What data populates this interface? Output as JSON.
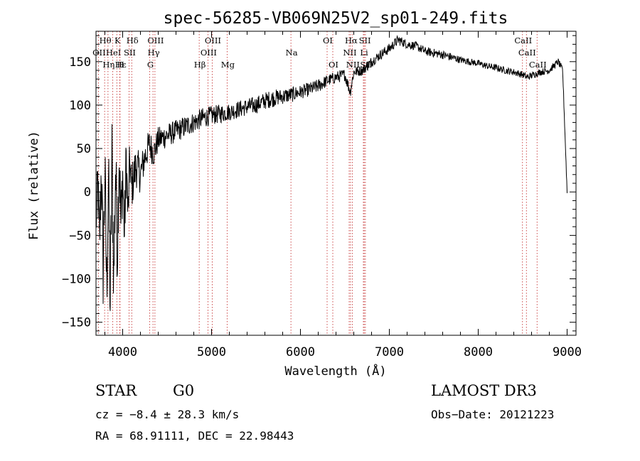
{
  "chart_data": {
    "type": "line",
    "title": "spec-56285-VB069N25V2_sp01-249.fits",
    "xlabel": "Wavelength (Å)",
    "ylabel": "Flux (relative)",
    "xlim": [
      3700,
      9100
    ],
    "ylim": [
      -165,
      185
    ],
    "x_ticks": [
      4000,
      5000,
      6000,
      7000,
      8000,
      9000
    ],
    "x_tick_labels": [
      "4000",
      "5000",
      "6000",
      "7000",
      "8000",
      "9000"
    ],
    "y_ticks": [
      -150,
      -100,
      -50,
      0,
      50,
      100,
      150
    ],
    "y_tick_labels": [
      "−150",
      "−100",
      "−50",
      "0",
      "50",
      "100",
      "150"
    ],
    "series": [
      {
        "name": "flux",
        "x": [
          3700,
          3720,
          3740,
          3760,
          3780,
          3800,
          3820,
          3840,
          3860,
          3880,
          3900,
          3920,
          3940,
          3960,
          3980,
          4000,
          4020,
          4040,
          4060,
          4080,
          4100,
          4150,
          4200,
          4250,
          4300,
          4350,
          4400,
          4500,
          4600,
          4700,
          4800,
          4900,
          5000,
          5100,
          5200,
          5300,
          5400,
          5500,
          5600,
          5700,
          5800,
          5900,
          6000,
          6100,
          6200,
          6300,
          6400,
          6500,
          6560,
          6600,
          6700,
          6800,
          6900,
          7000,
          7100,
          7200,
          7300,
          7400,
          7500,
          7600,
          7700,
          7800,
          7900,
          8000,
          8100,
          8200,
          8300,
          8400,
          8500,
          8550,
          8600,
          8650,
          8700,
          8800,
          8900,
          8950,
          9000
        ],
        "y": [
          -40,
          10,
          -60,
          30,
          -90,
          20,
          -110,
          15,
          -130,
          40,
          -100,
          30,
          -70,
          50,
          -40,
          20,
          -50,
          40,
          -30,
          35,
          5,
          30,
          20,
          40,
          55,
          45,
          60,
          65,
          70,
          75,
          80,
          85,
          88,
          90,
          92,
          95,
          98,
          100,
          105,
          108,
          110,
          112,
          115,
          118,
          122,
          128,
          132,
          135,
          115,
          138,
          140,
          150,
          158,
          165,
          175,
          170,
          168,
          162,
          160,
          158,
          155,
          152,
          150,
          148,
          145,
          143,
          140,
          138,
          135,
          132,
          134,
          136,
          138,
          140,
          150,
          140,
          0
        ],
        "noise": [
          25,
          40,
          40,
          45,
          50,
          55,
          55,
          55,
          55,
          55,
          55,
          50,
          50,
          50,
          45,
          40,
          38,
          35,
          33,
          30,
          28,
          25,
          22,
          20,
          18,
          17,
          15,
          14,
          13,
          13,
          12,
          12,
          11,
          11,
          10,
          10,
          10,
          10,
          10,
          10,
          9,
          9,
          8,
          8,
          8,
          7,
          7,
          7,
          7,
          6,
          6,
          6,
          6,
          6,
          6,
          5,
          5,
          5,
          5,
          5,
          5,
          4,
          4,
          4,
          4,
          4,
          4,
          4,
          4,
          4,
          4,
          4,
          4,
          4,
          4,
          4,
          4
        ]
      }
    ],
    "emission_lines": [
      {
        "label": "Hθ",
        "wave": 3797,
        "row": 1
      },
      {
        "label": "K",
        "wave": 3934,
        "row": 1
      },
      {
        "label": "Hδ",
        "wave": 4102,
        "row": 1
      },
      {
        "label": "OIII",
        "wave": 4363,
        "row": 1
      },
      {
        "label": "OIII",
        "wave": 5007,
        "row": 1
      },
      {
        "label": "OI",
        "wave": 6300,
        "row": 1
      },
      {
        "label": "Hα",
        "wave": 6563,
        "row": 1
      },
      {
        "label": "SII",
        "wave": 6717,
        "row": 1
      },
      {
        "label": "CaII",
        "wave": 8498,
        "row": 1
      },
      {
        "label": "OII",
        "wave": 3727,
        "row": 2
      },
      {
        "label": "HeI",
        "wave": 3889,
        "row": 2
      },
      {
        "label": "SII",
        "wave": 4072,
        "row": 2
      },
      {
        "label": "Hγ",
        "wave": 4341,
        "row": 2
      },
      {
        "label": "OIII",
        "wave": 4959,
        "row": 2
      },
      {
        "label": "Na",
        "wave": 5893,
        "row": 2
      },
      {
        "label": "NII",
        "wave": 6548,
        "row": 2
      },
      {
        "label": "Li",
        "wave": 6708,
        "row": 2
      },
      {
        "label": "CaII",
        "wave": 8542,
        "row": 2
      },
      {
        "label": "Hε",
        "wave": 3970,
        "row": 3
      },
      {
        "label": "Hη",
        "wave": 3835,
        "row": 3
      },
      {
        "label": "H",
        "wave": 3968,
        "row": 3
      },
      {
        "label": "G",
        "wave": 4304,
        "row": 3
      },
      {
        "label": "Hβ",
        "wave": 4861,
        "row": 3
      },
      {
        "label": "Mg",
        "wave": 5175,
        "row": 3
      },
      {
        "label": "OI",
        "wave": 6364,
        "row": 3
      },
      {
        "label": "NII",
        "wave": 6583,
        "row": 3
      },
      {
        "label": "SII",
        "wave": 6731,
        "row": 3
      },
      {
        "label": "CaII",
        "wave": 8662,
        "row": 3
      }
    ]
  },
  "info": {
    "object_class": "STAR",
    "subclass": "G0",
    "redshift": "cz = −8.4 ± 28.3 km/s",
    "coords": "RA =  68.91111, DEC =  22.98443",
    "survey": "LAMOST DR3",
    "obs_date": "Obs−Date: 20121223"
  }
}
